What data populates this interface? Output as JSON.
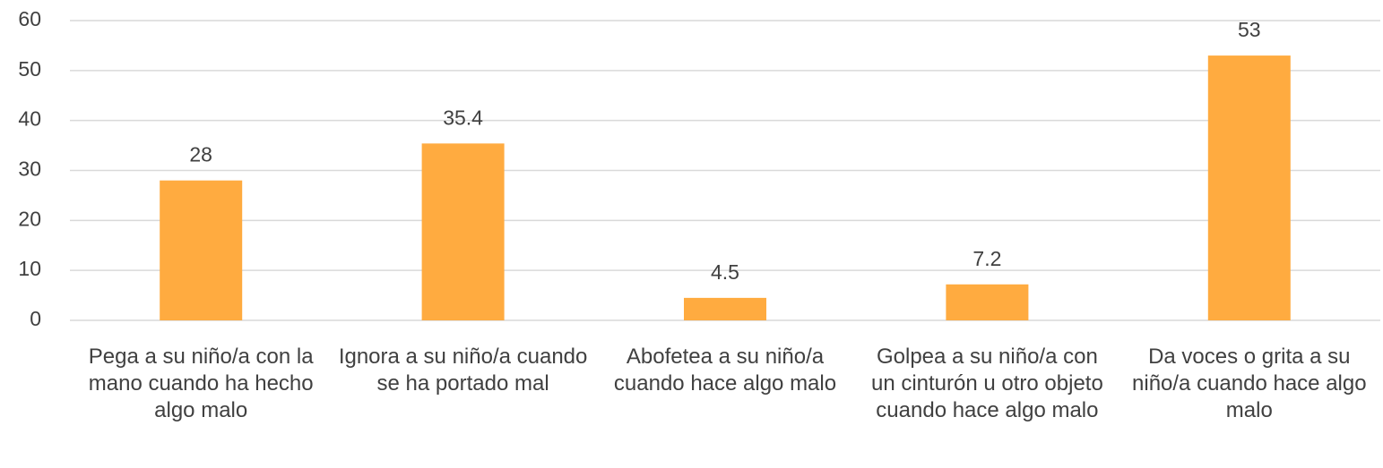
{
  "chart_data": {
    "type": "bar",
    "categories": [
      "Pega a su niño/a con la mano cuando ha hecho algo malo",
      "Ignora a su niño/a cuando se ha portado mal",
      "Abofetea a su niño/a cuando hace algo malo",
      "Golpea a su niño/a con un cinturón u otro objeto cuando hace algo malo",
      "Da voces o grita a su niño/a cuando hace algo malo"
    ],
    "values": [
      28,
      35.4,
      4.5,
      7.2,
      53
    ],
    "color": "#ffab40",
    "ylim": [
      0,
      60
    ],
    "yticks": [
      0,
      10,
      20,
      30,
      40,
      50,
      60
    ],
    "grid": true
  }
}
